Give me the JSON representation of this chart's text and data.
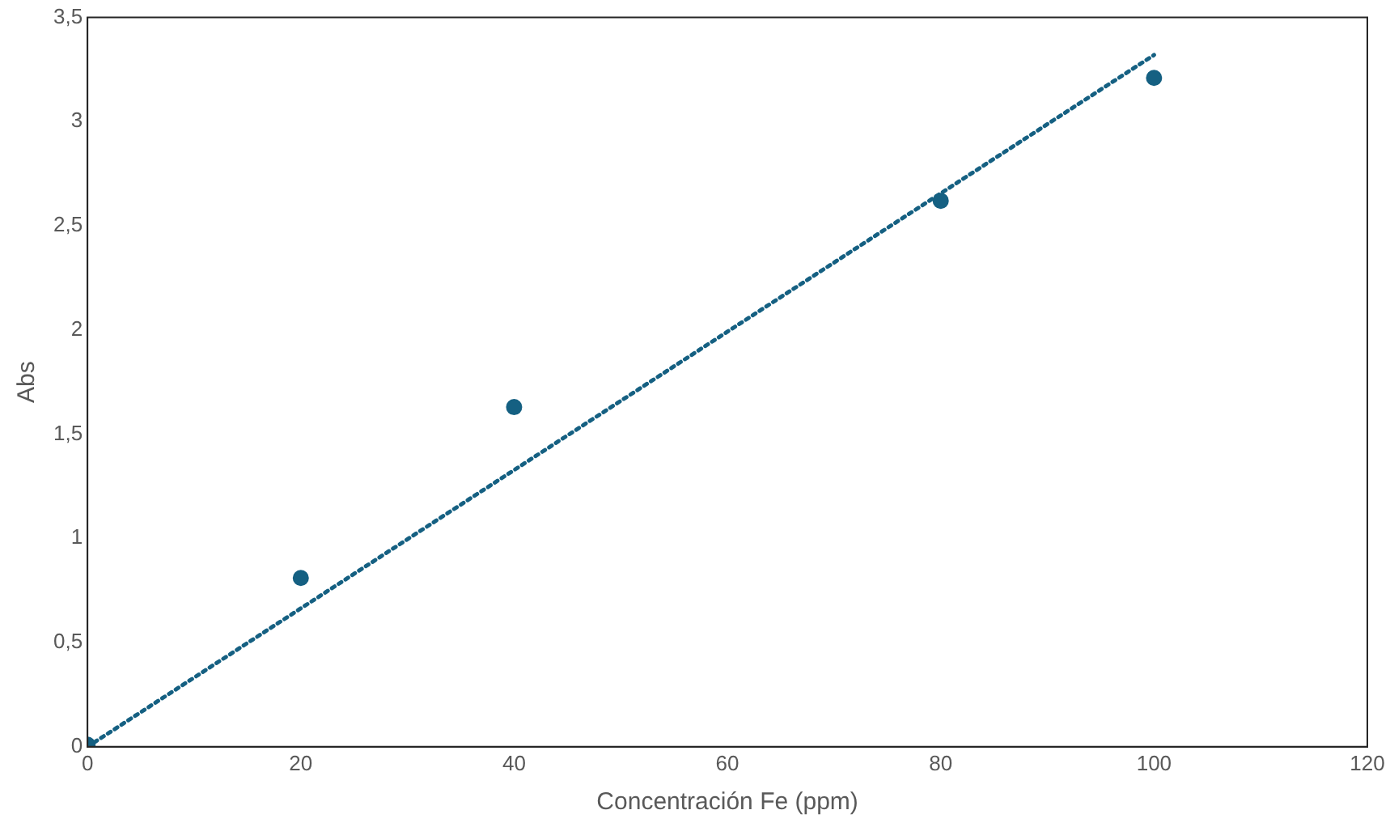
{
  "chart_data": {
    "type": "scatter",
    "xlabel": "Concentración Fe (ppm)",
    "ylabel": "Abs",
    "series": [
      {
        "color": "#156082",
        "x": [
          0,
          20,
          40,
          80,
          100
        ],
        "values": [
          0.01,
          0.81,
          1.63,
          2.62,
          3.21
        ],
        "marker": "circle"
      },
      {
        "type": "line",
        "color": "#156082",
        "x": [
          0,
          100
        ],
        "values": [
          0,
          3.32
        ],
        "line_style": "dotted",
        "marker": "none"
      }
    ],
    "xlim": [
      0,
      120
    ],
    "xticks": [
      0,
      20,
      40,
      60,
      80,
      100,
      120
    ],
    "ylim": [
      0,
      3.5
    ],
    "yticks": [
      0,
      {
        "value": 0.5,
        "label": "0,5"
      },
      1,
      {
        "value": 1.5,
        "label": "1,5"
      },
      2,
      {
        "value": 2.5,
        "label": "2,5"
      },
      3,
      {
        "value": 3.5,
        "label": "3,5"
      }
    ],
    "grid": false,
    "legend": false
  }
}
